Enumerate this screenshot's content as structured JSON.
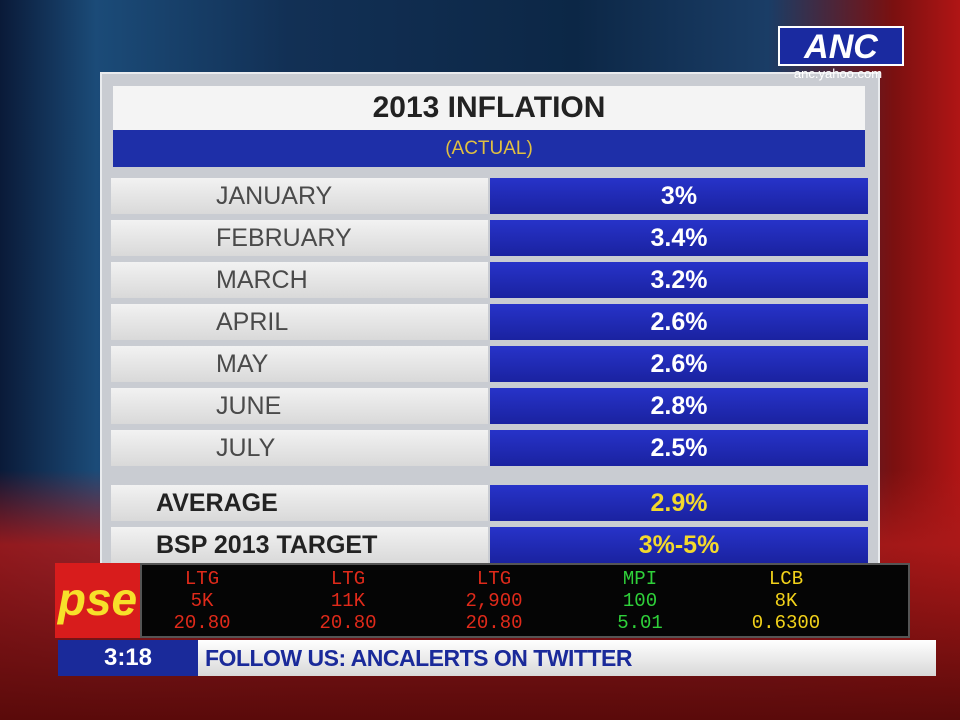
{
  "logo": {
    "name": "ANC",
    "site": "anc.yahoo.com"
  },
  "table": {
    "title": "2013 INFLATION",
    "subtitle": "(ACTUAL)",
    "rows": [
      [
        "JANUARY",
        "3%"
      ],
      [
        "FEBRUARY",
        "3.4%"
      ],
      [
        "MARCH",
        "3.2%"
      ],
      [
        "APRIL",
        "2.6%"
      ],
      [
        "MAY",
        "2.6%"
      ],
      [
        "JUNE",
        "2.8%"
      ],
      [
        "JULY",
        "2.5%"
      ]
    ],
    "summary": [
      [
        "AVERAGE",
        "2.9%"
      ],
      [
        "BSP 2013 TARGET",
        "3%-5%"
      ]
    ]
  },
  "ticker": {
    "logo": "pse",
    "stocks": [
      {
        "symbol": "LTG",
        "volume": "5K",
        "price": "20.80",
        "color": "#e02a1a"
      },
      {
        "symbol": "LTG",
        "volume": "11K",
        "price": "20.80",
        "color": "#e02a1a"
      },
      {
        "symbol": "LTG",
        "volume": "2,900",
        "price": "20.80",
        "color": "#e02a1a"
      },
      {
        "symbol": "MPI",
        "volume": "100",
        "price": "5.01",
        "color": "#2fd13a"
      },
      {
        "symbol": "LCB",
        "volume": "8K",
        "price": "0.6300",
        "color": "#f2d21a"
      }
    ]
  },
  "crawl": {
    "clock": "3:18",
    "text": "FOLLOW US: ANCALERTS ON TWITTER"
  }
}
